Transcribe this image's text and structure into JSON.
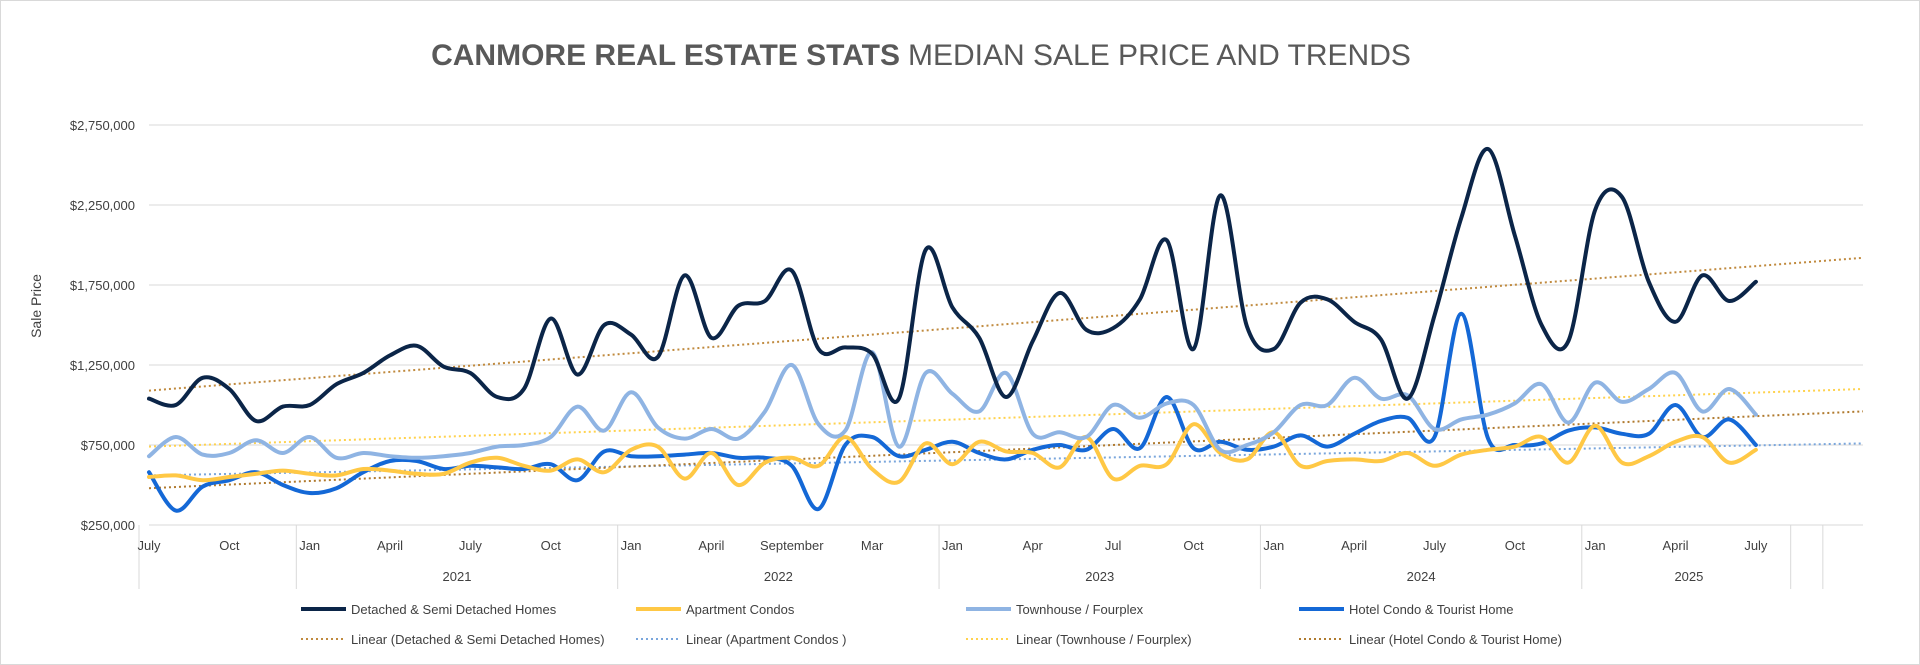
{
  "chart_data": {
    "type": "line",
    "title": "CANMORE REAL ESTATE STATS",
    "subtitle": "MEDIAN SALE PRICE AND TRENDS",
    "ylabel": "Sale Price",
    "ylim": [
      250000,
      2750000
    ],
    "yticks": [
      250000,
      750000,
      1250000,
      1750000,
      2250000,
      2750000
    ],
    "ytick_labels": [
      "$250,000",
      "$750,000",
      "$1,250,000",
      "$1,750,000",
      "$2,250,000",
      "$2,750,000"
    ],
    "x_month_labels": [
      {
        "i": 0,
        "label": "July"
      },
      {
        "i": 3,
        "label": "Oct"
      },
      {
        "i": 6,
        "label": "Jan"
      },
      {
        "i": 9,
        "label": "April"
      },
      {
        "i": 12,
        "label": "July"
      },
      {
        "i": 15,
        "label": "Oct"
      },
      {
        "i": 18,
        "label": "Jan"
      },
      {
        "i": 21,
        "label": "April"
      },
      {
        "i": 24,
        "label": "September"
      },
      {
        "i": 27,
        "label": "Mar"
      },
      {
        "i": 30,
        "label": "Jan"
      },
      {
        "i": 33,
        "label": "Apr"
      },
      {
        "i": 36,
        "label": "Jul"
      },
      {
        "i": 39,
        "label": "Oct"
      },
      {
        "i": 42,
        "label": "Jan"
      },
      {
        "i": 45,
        "label": "April"
      },
      {
        "i": 48,
        "label": "July"
      },
      {
        "i": 51,
        "label": "Oct"
      },
      {
        "i": 54,
        "label": "Jan"
      },
      {
        "i": 57,
        "label": "April"
      },
      {
        "i": 60,
        "label": "July"
      }
    ],
    "x_year_groups": [
      {
        "label": "2021",
        "start": 6,
        "end": 17
      },
      {
        "label": "2022",
        "start": 18,
        "end": 29
      },
      {
        "label": "2023",
        "start": 30,
        "end": 41
      },
      {
        "label": "2024",
        "start": 42,
        "end": 53
      },
      {
        "label": "2025",
        "start": 54,
        "end": 61
      }
    ],
    "series": [
      {
        "name": "Detached & Semi Detached Homes",
        "color": "#0b2548",
        "values": [
          1040000,
          1000000,
          1170000,
          1100000,
          900000,
          990000,
          1000000,
          1130000,
          1200000,
          1310000,
          1370000,
          1240000,
          1200000,
          1050000,
          1100000,
          1540000,
          1190000,
          1500000,
          1440000,
          1300000,
          1810000,
          1420000,
          1620000,
          1650000,
          1840000,
          1350000,
          1360000,
          1320000,
          1040000,
          1970000,
          1610000,
          1420000,
          1050000,
          1400000,
          1700000,
          1470000,
          1480000,
          1660000,
          2030000,
          1350000,
          2310000,
          1490000,
          1350000,
          1640000,
          1660000,
          1520000,
          1410000,
          1040000,
          1560000,
          2170000,
          2600000,
          2060000,
          1500000,
          1400000,
          2220000,
          2300000,
          1770000,
          1520000,
          1810000,
          1650000,
          1770000
        ]
      },
      {
        "name": "Apartment Condos",
        "color": "#ffc845",
        "values": [
          550000,
          560000,
          530000,
          550000,
          570000,
          590000,
          570000,
          560000,
          600000,
          590000,
          570000,
          570000,
          640000,
          670000,
          620000,
          590000,
          660000,
          580000,
          720000,
          740000,
          540000,
          700000,
          500000,
          640000,
          670000,
          620000,
          800000,
          600000,
          520000,
          760000,
          630000,
          770000,
          710000,
          700000,
          610000,
          800000,
          540000,
          620000,
          630000,
          880000,
          700000,
          660000,
          830000,
          620000,
          650000,
          660000,
          650000,
          700000,
          620000,
          690000,
          720000,
          740000,
          800000,
          640000,
          870000,
          640000,
          680000,
          770000,
          800000,
          640000,
          720000
        ]
      },
      {
        "name": "Townhouse / Fourplex",
        "color": "#8fb4e3",
        "values": [
          680000,
          800000,
          690000,
          700000,
          780000,
          700000,
          800000,
          670000,
          700000,
          680000,
          670000,
          680000,
          700000,
          740000,
          750000,
          800000,
          990000,
          840000,
          1080000,
          860000,
          790000,
          850000,
          790000,
          960000,
          1250000,
          880000,
          840000,
          1330000,
          740000,
          1200000,
          1070000,
          960000,
          1200000,
          820000,
          830000,
          800000,
          1000000,
          920000,
          1010000,
          1000000,
          720000,
          750000,
          830000,
          1000000,
          1000000,
          1170000,
          1040000,
          1060000,
          850000,
          910000,
          940000,
          1010000,
          1130000,
          890000,
          1140000,
          1020000,
          1100000,
          1200000,
          960000,
          1100000,
          940000
        ]
      },
      {
        "name": "Hotel Condo & Tourist Home",
        "color": "#1468d6",
        "values": [
          580000,
          340000,
          490000,
          530000,
          580000,
          500000,
          450000,
          480000,
          580000,
          650000,
          650000,
          600000,
          620000,
          610000,
          600000,
          630000,
          530000,
          710000,
          680000,
          680000,
          690000,
          700000,
          670000,
          670000,
          620000,
          350000,
          750000,
          800000,
          680000,
          720000,
          770000,
          700000,
          660000,
          720000,
          750000,
          720000,
          850000,
          730000,
          1050000,
          730000,
          770000,
          720000,
          740000,
          810000,
          740000,
          820000,
          900000,
          920000,
          800000,
          1570000,
          790000,
          750000,
          760000,
          840000,
          860000,
          820000,
          820000,
          1000000,
          800000,
          910000,
          750000
        ]
      }
    ],
    "trendlines": [
      {
        "name": "Linear (Detached & Semi Detached Homes)",
        "color": "#c08a3e",
        "start": 1090000,
        "end": 1920000
      },
      {
        "name": "Linear (Apartment Condos )",
        "color": "#7aa6dc",
        "start": 560000,
        "end": 760000
      },
      {
        "name": "Linear (Townhouse / Fourplex)",
        "color": "#ffd24d",
        "start": 740000,
        "end": 1100000
      },
      {
        "name": "Linear (Hotel Condo & Tourist Home)",
        "color": "#b07a2e",
        "start": 480000,
        "end": 960000
      }
    ],
    "legend_position": "bottom",
    "grid": true
  }
}
